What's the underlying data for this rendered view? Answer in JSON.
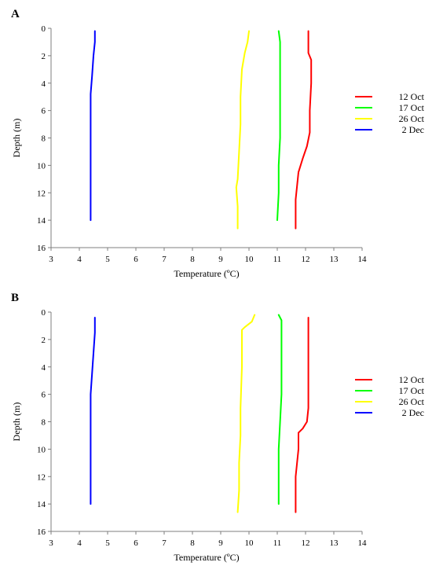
{
  "chart_data": [
    {
      "type": "line",
      "panel_label": "A",
      "xlabel": "Temperature (ºC)",
      "ylabel": "Depth (m)",
      "xlim": [
        3,
        14
      ],
      "ylim": [
        0,
        16
      ],
      "y_inverted": true,
      "x_axis_position": "bottom",
      "xticks": [
        3,
        4,
        5,
        6,
        7,
        8,
        9,
        10,
        11,
        12,
        13,
        14
      ],
      "yticks": [
        0,
        2,
        4,
        6,
        8,
        10,
        12,
        14,
        16
      ],
      "grid": false,
      "legend_position": "right",
      "series": [
        {
          "name": "12 Oct",
          "color": "#ff0000",
          "points": [
            [
              12.1,
              0.2
            ],
            [
              12.1,
              1.8
            ],
            [
              12.2,
              2.3
            ],
            [
              12.2,
              4
            ],
            [
              12.15,
              6
            ],
            [
              12.15,
              7.6
            ],
            [
              12.05,
              8.6
            ],
            [
              11.9,
              9.5
            ],
            [
              11.75,
              10.5
            ],
            [
              11.7,
              11.5
            ],
            [
              11.65,
              12.5
            ],
            [
              11.65,
              14.6
            ]
          ]
        },
        {
          "name": "17 Oct",
          "color": "#00ff00",
          "points": [
            [
              11.05,
              0.2
            ],
            [
              11.1,
              1
            ],
            [
              11.1,
              4
            ],
            [
              11.1,
              6
            ],
            [
              11.1,
              8
            ],
            [
              11.05,
              10
            ],
            [
              11.05,
              12
            ],
            [
              11.0,
              14.0
            ]
          ]
        },
        {
          "name": "26 Oct",
          "color": "#ffff00",
          "points": [
            [
              10.0,
              0.2
            ],
            [
              9.95,
              1
            ],
            [
              9.85,
              1.8
            ],
            [
              9.75,
              3
            ],
            [
              9.7,
              5
            ],
            [
              9.7,
              7
            ],
            [
              9.65,
              9
            ],
            [
              9.6,
              11
            ],
            [
              9.55,
              11.6
            ],
            [
              9.6,
              13
            ],
            [
              9.6,
              14.6
            ]
          ]
        },
        {
          "name": "2 Dec",
          "color": "#0000ff",
          "points": [
            [
              4.55,
              0.2
            ],
            [
              4.55,
              1
            ],
            [
              4.5,
              2
            ],
            [
              4.45,
              3.5
            ],
            [
              4.4,
              4.8
            ],
            [
              4.4,
              7
            ],
            [
              4.4,
              10
            ],
            [
              4.4,
              14.0
            ]
          ]
        }
      ]
    },
    {
      "type": "line",
      "panel_label": "B",
      "xlabel": "Temperature (ºC)",
      "ylabel": "Depth (m)",
      "xlim": [
        3,
        14
      ],
      "ylim": [
        0,
        16
      ],
      "y_inverted": true,
      "x_axis_position": "bottom",
      "xticks": [
        3,
        4,
        5,
        6,
        7,
        8,
        9,
        10,
        11,
        12,
        13,
        14
      ],
      "yticks": [
        0,
        2,
        4,
        6,
        8,
        10,
        12,
        14,
        16
      ],
      "grid": false,
      "legend_position": "right",
      "series": [
        {
          "name": "12 Oct",
          "color": "#ff0000",
          "points": [
            [
              12.1,
              0.4
            ],
            [
              12.1,
              3
            ],
            [
              12.1,
              6
            ],
            [
              12.1,
              7
            ],
            [
              12.05,
              8
            ],
            [
              11.9,
              8.5
            ],
            [
              11.75,
              8.8
            ],
            [
              11.75,
              10
            ],
            [
              11.7,
              11
            ],
            [
              11.65,
              12
            ],
            [
              11.65,
              14.6
            ]
          ]
        },
        {
          "name": "17 Oct",
          "color": "#00ff00",
          "points": [
            [
              11.05,
              0.2
            ],
            [
              11.15,
              0.6
            ],
            [
              11.15,
              3
            ],
            [
              11.15,
              6
            ],
            [
              11.1,
              8
            ],
            [
              11.05,
              10
            ],
            [
              11.05,
              12
            ],
            [
              11.05,
              14.0
            ]
          ]
        },
        {
          "name": "26 Oct",
          "color": "#ffff00",
          "points": [
            [
              10.2,
              0.2
            ],
            [
              10.1,
              0.7
            ],
            [
              9.85,
              1.1
            ],
            [
              9.75,
              1.3
            ],
            [
              9.75,
              4
            ],
            [
              9.7,
              7
            ],
            [
              9.7,
              9
            ],
            [
              9.65,
              11
            ],
            [
              9.65,
              13
            ],
            [
              9.6,
              14.6
            ]
          ]
        },
        {
          "name": "2 Dec",
          "color": "#0000ff",
          "points": [
            [
              4.55,
              0.4
            ],
            [
              4.55,
              1.5
            ],
            [
              4.5,
              3
            ],
            [
              4.45,
              4.5
            ],
            [
              4.4,
              6
            ],
            [
              4.4,
              9
            ],
            [
              4.4,
              14.0
            ]
          ]
        }
      ]
    }
  ]
}
